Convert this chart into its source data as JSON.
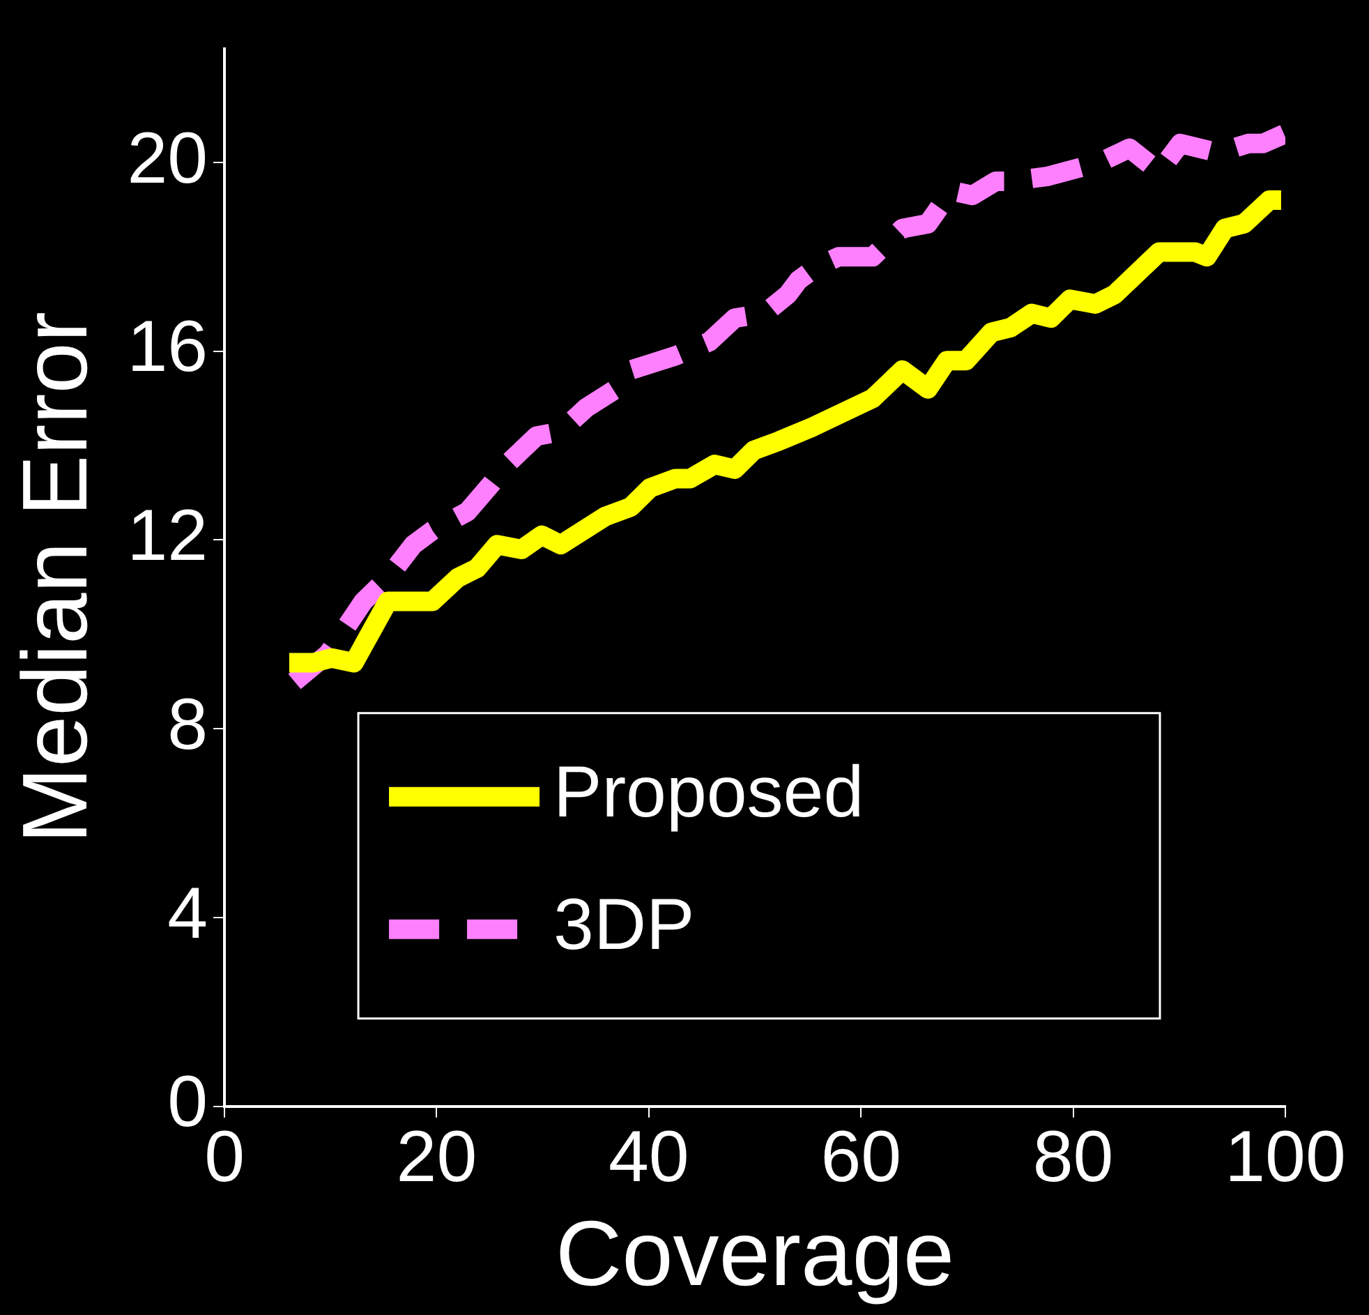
{
  "chart_data": {
    "type": "line",
    "xlabel": "Coverage",
    "ylabel": "Median Error",
    "xlim": [
      0,
      100
    ],
    "xticks": [
      0,
      20,
      40,
      60,
      80,
      100
    ],
    "ylim": [
      0,
      22.4
    ],
    "yticks": [
      0,
      4,
      8,
      12,
      16,
      20
    ],
    "grid": false,
    "legend": "bottom",
    "marker": "none",
    "series": [
      {
        "name": "Proposed",
        "color": "#ffff00",
        "line_style": "solid",
        "x": [
          6.1,
          8.4,
          10.1,
          12.2,
          15.4,
          19.6,
          22.0,
          23.8,
          25.7,
          28.0,
          29.9,
          31.7,
          35.9,
          38.3,
          40.1,
          42.5,
          43.9,
          46.2,
          48.1,
          49.9,
          52.3,
          55.5,
          61.1,
          63.9,
          66.3,
          68.1,
          69.9,
          72.3,
          74.1,
          76.1,
          77.9,
          79.7,
          82.1,
          83.9,
          88.1,
          91.5,
          92.6,
          94.3,
          96.1,
          98.5,
          99.6
        ],
        "values": [
          9.4,
          9.4,
          9.5,
          9.4,
          10.7,
          10.7,
          11.2,
          11.4,
          11.9,
          11.8,
          12.1,
          11.9,
          12.5,
          12.7,
          13.1,
          13.3,
          13.3,
          13.6,
          13.5,
          13.9,
          14.1,
          14.4,
          15.0,
          15.6,
          15.2,
          15.8,
          15.8,
          16.4,
          16.5,
          16.8,
          16.7,
          17.1,
          17.0,
          17.2,
          18.1,
          18.1,
          18.0,
          18.6,
          18.7,
          19.2,
          19.2
        ]
      },
      {
        "name": "3DP",
        "color": "#ff80ff",
        "line_style": "dashed",
        "x": [
          6.6,
          9.8,
          13.1,
          15.4,
          17.8,
          19.6,
          22.9,
          25.2,
          26.6,
          29.4,
          31.7,
          34.1,
          36.9,
          38.3,
          42.5,
          45.7,
          48.1,
          50.9,
          53.1,
          54.1,
          55.9,
          57.9,
          61.1,
          63.9,
          66.3,
          68.5,
          70.5,
          72.7,
          74.1,
          77.5,
          82.5,
          85.3,
          88.1,
          90.1,
          93.7,
          96.5,
          97.9,
          99.9
        ],
        "values": [
          9.0,
          9.6,
          10.7,
          11.2,
          11.9,
          12.2,
          12.6,
          13.2,
          13.6,
          14.2,
          14.3,
          14.8,
          15.2,
          15.6,
          15.9,
          16.2,
          16.7,
          16.8,
          17.2,
          17.5,
          17.8,
          18.0,
          18.0,
          18.6,
          18.7,
          19.4,
          19.3,
          19.6,
          19.6,
          19.7,
          20.0,
          20.3,
          19.8,
          20.4,
          20.2,
          20.4,
          20.4,
          20.6
        ]
      }
    ]
  }
}
